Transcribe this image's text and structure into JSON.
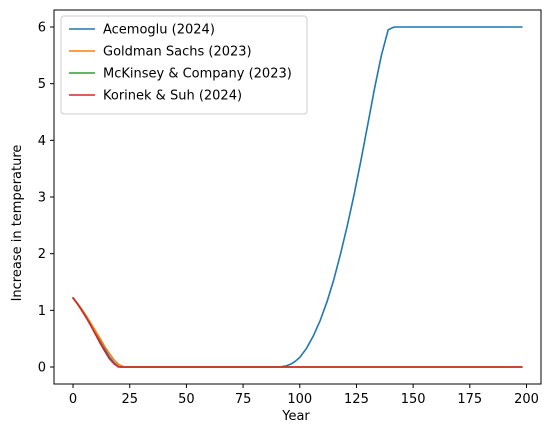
{
  "chart_data": {
    "type": "line",
    "title": "",
    "xlabel": "Year",
    "ylabel": "Increase in temperature",
    "xlim": [
      -8.4,
      206.4
    ],
    "ylim": [
      -0.3,
      6.3
    ],
    "xticks": [
      0,
      25,
      50,
      75,
      100,
      125,
      150,
      175,
      200
    ],
    "yticks": [
      0,
      1,
      2,
      3,
      4,
      5,
      6
    ],
    "grid": false,
    "legend_position": "top-left",
    "series": [
      {
        "name": "Acemoglu (2024)",
        "color": "#1f77b4",
        "x": [
          0,
          2,
          4,
          6,
          8,
          10,
          12,
          14,
          16,
          18,
          20,
          21,
          25,
          50,
          75,
          90,
          92,
          94,
          96,
          98,
          100,
          103,
          106,
          109,
          112,
          115,
          118,
          121,
          124,
          127,
          130,
          133,
          136,
          139,
          140,
          141,
          142,
          143,
          145,
          150,
          175,
          198
        ],
        "y": [
          1.22,
          1.12,
          1.01,
          0.89,
          0.76,
          0.62,
          0.47,
          0.32,
          0.18,
          0.08,
          0.01,
          0.0,
          0.0,
          0.0,
          0.0,
          0.0,
          0.005,
          0.02,
          0.05,
          0.1,
          0.17,
          0.33,
          0.55,
          0.82,
          1.15,
          1.54,
          2.0,
          2.5,
          3.05,
          3.65,
          4.28,
          4.92,
          5.5,
          5.95,
          5.97,
          5.99,
          6.0,
          6.0,
          6.0,
          6.0,
          6.0,
          6.0
        ]
      },
      {
        "name": "Goldman Sachs (2023)",
        "color": "#ff7f0e",
        "x": [
          0,
          2,
          4,
          6,
          8,
          10,
          12,
          14,
          16,
          18,
          20,
          22,
          23,
          25,
          50,
          100,
          150,
          198
        ],
        "y": [
          1.22,
          1.12,
          1.01,
          0.89,
          0.76,
          0.63,
          0.5,
          0.36,
          0.24,
          0.13,
          0.05,
          0.01,
          0.0,
          0.0,
          0.0,
          0.0,
          0.0,
          0.0
        ]
      },
      {
        "name": "McKinsey & Company (2023)",
        "color": "#2ca02c",
        "x": [
          0,
          2,
          4,
          6,
          8,
          10,
          12,
          14,
          16,
          18,
          20,
          21,
          25,
          50,
          100,
          150,
          198
        ],
        "y": [
          1.22,
          1.11,
          0.99,
          0.86,
          0.72,
          0.57,
          0.42,
          0.28,
          0.15,
          0.06,
          0.01,
          0.0,
          0.0,
          0.0,
          0.0,
          0.0,
          0.0
        ]
      },
      {
        "name": "Korinek & Suh (2024)",
        "color": "#d62728",
        "x": [
          0,
          2,
          4,
          6,
          8,
          10,
          12,
          14,
          16,
          18,
          20,
          21,
          25,
          50,
          100,
          150,
          198
        ],
        "y": [
          1.22,
          1.11,
          0.99,
          0.86,
          0.72,
          0.57,
          0.42,
          0.28,
          0.15,
          0.06,
          0.0,
          0.0,
          0.0,
          0.0,
          0.0,
          0.0,
          0.0
        ]
      }
    ]
  }
}
